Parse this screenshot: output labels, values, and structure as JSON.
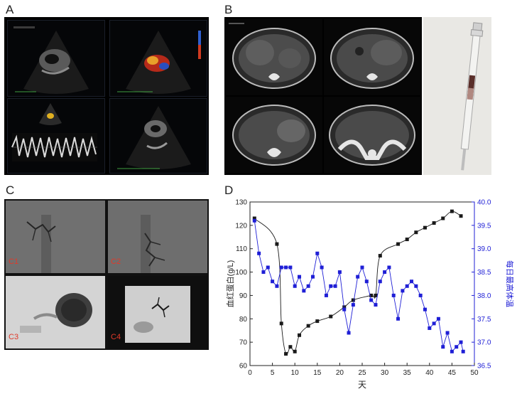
{
  "panels": {
    "A": {
      "label": "A"
    },
    "B": {
      "label": "B"
    },
    "C": {
      "label": "C",
      "sub_labels": [
        "C1",
        "C2",
        "C3",
        "C4"
      ]
    },
    "D": {
      "label": "D"
    }
  },
  "colors": {
    "hemoglobin": "#1a1a1a",
    "temperature": "#1f1fd6",
    "c_label": "#e03a2a"
  },
  "chart_data": {
    "type": "line",
    "xlabel": "天",
    "ylabel_left": "血红蛋白(g/L)",
    "ylabel_right": "每日最高体温",
    "xlim": [
      0,
      50
    ],
    "ylim_left": [
      60,
      130
    ],
    "ylim_right": [
      36.5,
      40.0
    ],
    "xticks": [
      0,
      5,
      10,
      15,
      20,
      25,
      30,
      35,
      40,
      45,
      50
    ],
    "yticks_left": [
      60,
      70,
      80,
      90,
      100,
      110,
      120,
      130
    ],
    "yticks_right": [
      "36.5",
      "37.0",
      "37.5",
      "38.0",
      "38.5",
      "39.0",
      "39.5",
      "40.0"
    ],
    "series": [
      {
        "axis": "left",
        "marker": "square",
        "color": "#1a1a1a",
        "smoothed": true,
        "points": [
          [
            1,
            123
          ],
          [
            6,
            112
          ],
          [
            7,
            78
          ],
          [
            8,
            65
          ],
          [
            9,
            68
          ],
          [
            10,
            66
          ],
          [
            11,
            73
          ],
          [
            13,
            77
          ],
          [
            15,
            79
          ],
          [
            18,
            81
          ],
          [
            21,
            85
          ],
          [
            23,
            88
          ],
          [
            27,
            90
          ],
          [
            28,
            90
          ],
          [
            29,
            107
          ],
          [
            33,
            112
          ],
          [
            35,
            114
          ],
          [
            37,
            117
          ],
          [
            39,
            119
          ],
          [
            41,
            121
          ],
          [
            43,
            123
          ],
          [
            45,
            126
          ],
          [
            47,
            124
          ]
        ]
      },
      {
        "axis": "right",
        "marker": "square",
        "color": "#1f1fd6",
        "smoothed": false,
        "points": [
          [
            1,
            39.6
          ],
          [
            2,
            38.9
          ],
          [
            3,
            38.5
          ],
          [
            4,
            38.6
          ],
          [
            5,
            38.3
          ],
          [
            6,
            38.2
          ],
          [
            7,
            38.6
          ],
          [
            8,
            38.6
          ],
          [
            9,
            38.6
          ],
          [
            10,
            38.2
          ],
          [
            11,
            38.4
          ],
          [
            12,
            38.1
          ],
          [
            13,
            38.2
          ],
          [
            14,
            38.4
          ],
          [
            15,
            38.9
          ],
          [
            16,
            38.6
          ],
          [
            17,
            38.0
          ],
          [
            18,
            38.2
          ],
          [
            19,
            38.2
          ],
          [
            20,
            38.5
          ],
          [
            21,
            37.7
          ],
          [
            22,
            37.2
          ],
          [
            23,
            37.8
          ],
          [
            24,
            38.4
          ],
          [
            25,
            38.6
          ],
          [
            26,
            38.3
          ],
          [
            27,
            37.9
          ],
          [
            28,
            37.8
          ],
          [
            29,
            38.3
          ],
          [
            30,
            38.5
          ],
          [
            31,
            38.6
          ],
          [
            32,
            38.0
          ],
          [
            33,
            37.5
          ],
          [
            34,
            38.1
          ],
          [
            35,
            38.2
          ],
          [
            36,
            38.3
          ],
          [
            37,
            38.2
          ],
          [
            38,
            38.0
          ],
          [
            39,
            37.7
          ],
          [
            40,
            37.3
          ],
          [
            41,
            37.4
          ],
          [
            42,
            37.5
          ],
          [
            43,
            36.9
          ],
          [
            44,
            37.2
          ],
          [
            45,
            36.8
          ],
          [
            46,
            36.9
          ],
          [
            47,
            37.0
          ],
          [
            47.5,
            36.8
          ]
        ]
      }
    ]
  }
}
